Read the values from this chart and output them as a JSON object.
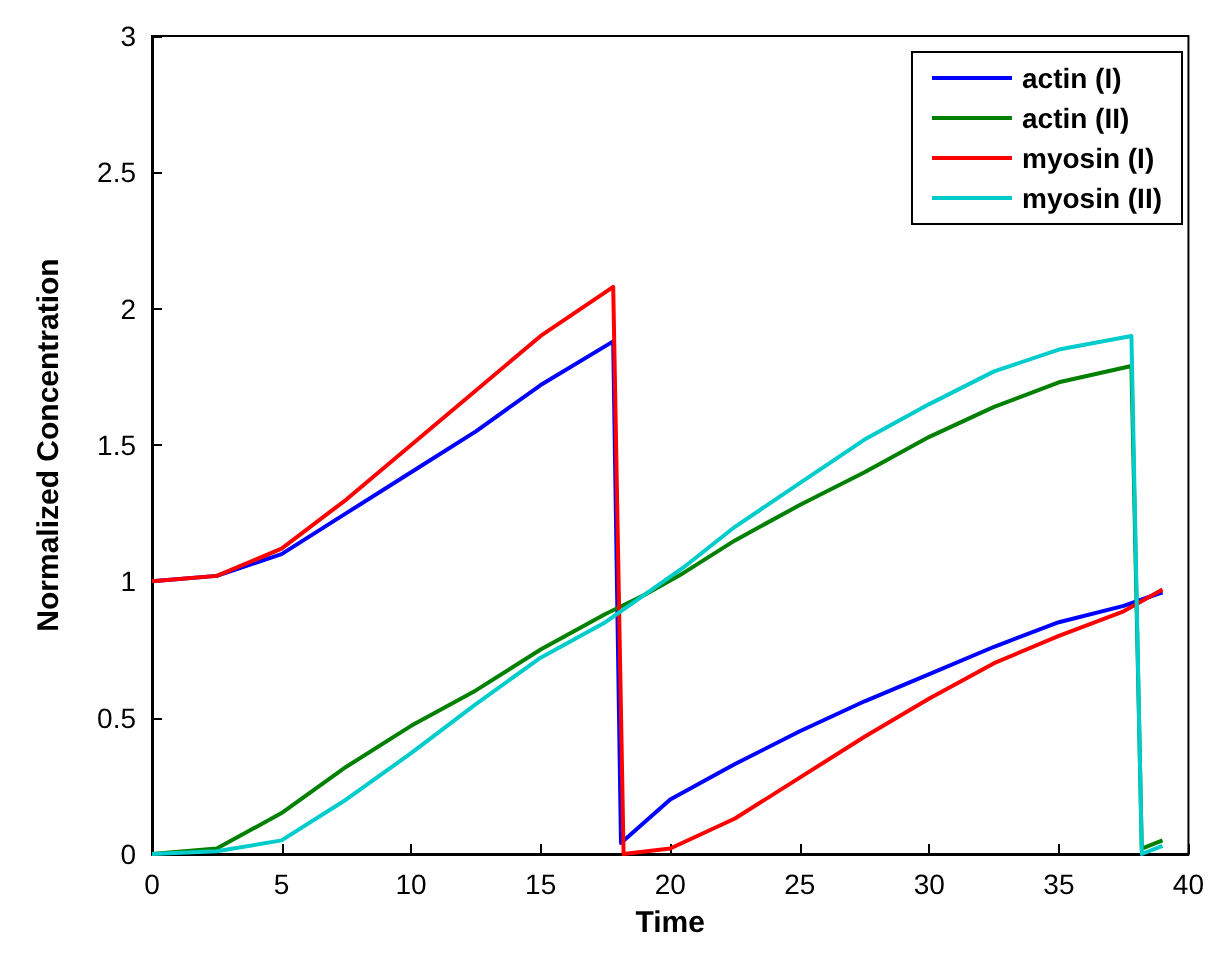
{
  "chart_data": {
    "type": "line",
    "xlabel": "Time",
    "ylabel": "Normalized Concentration",
    "xlim": [
      0,
      40
    ],
    "ylim": [
      0,
      3
    ],
    "xticks": [
      0,
      5,
      10,
      15,
      20,
      25,
      30,
      35,
      40
    ],
    "yticks": [
      0,
      0.5,
      1,
      1.5,
      2,
      2.5,
      3
    ],
    "grid": false,
    "legend": "top right",
    "marker": "none",
    "line_style": "solid",
    "series": [
      {
        "name": "actin (I)",
        "color": "#0000ff",
        "x": [
          0,
          2.5,
          5,
          7.5,
          10,
          12.5,
          15,
          17.8,
          18.1,
          20,
          22.5,
          25,
          27.5,
          30,
          32.5,
          35,
          37.5,
          39
        ],
        "values": [
          1.0,
          1.02,
          1.1,
          1.25,
          1.4,
          1.55,
          1.72,
          1.88,
          0.04,
          0.2,
          0.33,
          0.45,
          0.56,
          0.66,
          0.76,
          0.85,
          0.91,
          0.96
        ]
      },
      {
        "name": "actin (II)",
        "color": "#008000",
        "x": [
          0,
          2.5,
          5,
          7.5,
          10,
          12.5,
          15,
          17.5,
          19,
          20.5,
          22.5,
          25,
          27.5,
          30,
          32.5,
          35,
          37.8,
          38.2,
          39
        ],
        "values": [
          0,
          0.02,
          0.15,
          0.32,
          0.47,
          0.6,
          0.75,
          0.88,
          0.95,
          1.03,
          1.15,
          1.28,
          1.4,
          1.53,
          1.64,
          1.73,
          1.79,
          0.02,
          0.05
        ]
      },
      {
        "name": "myosin (I)",
        "color": "#ff0000",
        "x": [
          0,
          2.5,
          5,
          7.5,
          10,
          12.5,
          15,
          17.8,
          18.2,
          20,
          22.5,
          25,
          27.5,
          30,
          32.5,
          35,
          37.5,
          39
        ],
        "values": [
          1.0,
          1.02,
          1.12,
          1.3,
          1.5,
          1.7,
          1.9,
          2.08,
          0,
          0.02,
          0.13,
          0.28,
          0.43,
          0.57,
          0.7,
          0.8,
          0.89,
          0.97
        ]
      },
      {
        "name": "myosin (II)",
        "color": "#00cccc",
        "x": [
          0,
          2.5,
          5,
          7.5,
          10,
          12.5,
          15,
          17.5,
          19,
          20.5,
          22.5,
          25,
          27.5,
          30,
          32.5,
          35,
          37.8,
          38.2,
          39
        ],
        "values": [
          0,
          0.01,
          0.05,
          0.2,
          0.37,
          0.55,
          0.72,
          0.85,
          0.95,
          1.05,
          1.2,
          1.36,
          1.52,
          1.65,
          1.77,
          1.85,
          1.9,
          0,
          0.03
        ]
      }
    ]
  }
}
